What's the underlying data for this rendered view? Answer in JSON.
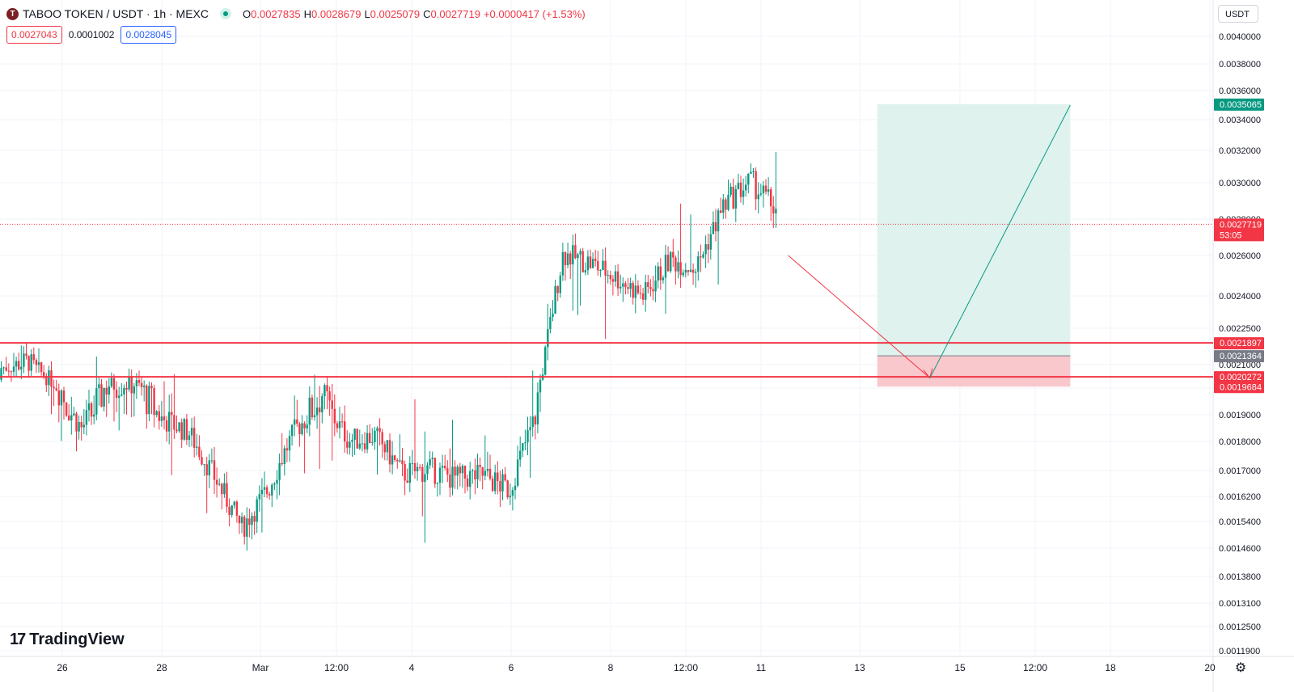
{
  "header": {
    "symbol_icon": "taboo-logo-icon",
    "symbol": "TABOO TOKEN / USDT · 1h · MEXC",
    "ohlc": [
      {
        "key": "O",
        "value": "0.0027835"
      },
      {
        "key": "H",
        "value": "0.0028679"
      },
      {
        "key": "L",
        "value": "0.0025079"
      },
      {
        "key": "C",
        "value": "0.0027719"
      }
    ],
    "change": "+0.0000417 (+1.53%)",
    "sell_price": "0.0027043",
    "spread": "0.0001002",
    "buy_price": "0.0028045"
  },
  "currency_button": "USDT",
  "brand": "TradingView",
  "chart_data": {
    "type": "candlestick",
    "y_scale": "log",
    "y_ticks": [
      "0.0040000",
      "0.0038000",
      "0.0036000",
      "0.0034000",
      "0.0032000",
      "0.0030000",
      "0.0028000",
      "0.0026000",
      "0.0024000",
      "0.0022500",
      "0.0021000",
      "0.0019600",
      "0.0019000",
      "0.0018000",
      "0.0017000",
      "0.0016200",
      "0.0015400",
      "0.0014600",
      "0.0013800",
      "0.0013100",
      "0.0012500",
      "0.0011900"
    ],
    "x_ticks": [
      "26",
      "28",
      "Mar",
      "12:00",
      "4",
      "6",
      "8",
      "12:00",
      "11",
      "13",
      "15",
      "12:00",
      "18",
      "20"
    ],
    "price_labels": [
      {
        "value": "0.0035065",
        "color": "#089981"
      },
      {
        "value": "0.0027719",
        "sub": "53:05",
        "color": "#f23645"
      },
      {
        "value": "0.0021897",
        "color": "#f23645"
      },
      {
        "value": "0.0021364",
        "color": "#787b86"
      },
      {
        "value": "0.0020272",
        "color": "#f23645"
      },
      {
        "value": "0.0019684",
        "color": "#f23645"
      }
    ],
    "current_price": 0.0027719,
    "horizontal_lines": [
      0.0021897,
      0.0020272
    ],
    "position": {
      "target": 0.0035065,
      "entry": 0.0021364,
      "stop": 0.0019684
    },
    "price_path": [
      {
        "x": "11",
        "y": 0.0026
      },
      {
        "x": "14",
        "y": 0.00202
      },
      {
        "x": "15",
        "y": 0.0035
      }
    ],
    "candle_keyframes": [
      [
        0.00201,
        0.00215
      ],
      [
        0.00213,
        0.00209
      ],
      [
        0.00206,
        0.00192
      ],
      [
        0.00186,
        0.00184
      ],
      [
        0.00186,
        0.0021
      ],
      [
        0.00206,
        0.00191
      ],
      [
        0.0019,
        0.00187
      ],
      [
        0.00185,
        0.00182
      ],
      [
        0.00175,
        0.0016
      ],
      [
        0.00146,
        0.00158
      ],
      [
        0.00161,
        0.00168
      ],
      [
        0.00172,
        0.00197
      ],
      [
        0.00201,
        0.00189
      ],
      [
        0.00187,
        0.00174
      ],
      [
        0.00183,
        0.00181
      ],
      [
        0.00172,
        0.00166
      ],
      [
        0.0017,
        0.00171
      ],
      [
        0.00166,
        0.00169
      ],
      [
        0.0017,
        0.00167
      ],
      [
        0.00165,
        0.00163
      ],
      [
        0.0017,
        0.0021
      ],
      [
        0.0025,
        0.00272
      ],
      [
        0.00268,
        0.00245
      ],
      [
        0.0024,
        0.00258
      ],
      [
        0.00252,
        0.00228
      ],
      [
        0.0024,
        0.00276
      ],
      [
        0.0025,
        0.00258
      ],
      [
        0.00275,
        0.003
      ],
      [
        0.00302,
        0.00301
      ],
      [
        0.00295,
        0.00274
      ]
    ]
  },
  "colors": {
    "up": "#089981",
    "down": "#f23645",
    "grid": "#f0f3fa",
    "target_zone": "#dff2ee",
    "stop_zone": "#f9c8cc"
  }
}
